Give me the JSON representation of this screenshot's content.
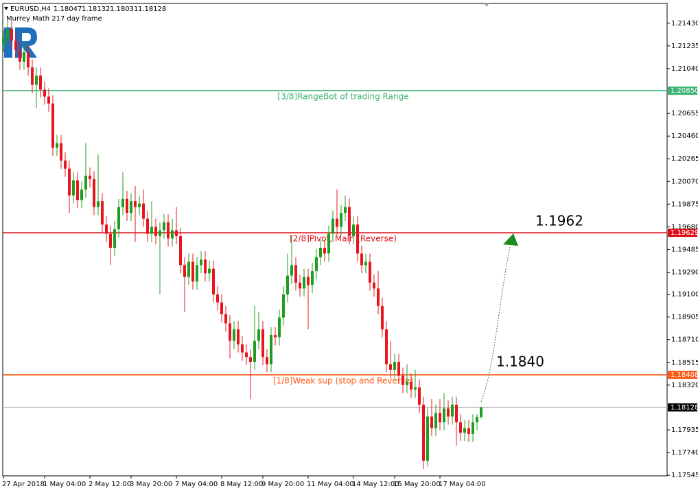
{
  "chart_data": {
    "type": "candlestick",
    "symbol": "EURUSD,H4",
    "subtitle": "Murrey Math 217 day frame",
    "up_color": "#1e9e1e",
    "down_color": "#e8141e",
    "ylim": [
      1.1754,
      1.216
    ],
    "yticks": [
      {
        "value": 1.2143,
        "label": "1.21430"
      },
      1.21235,
      {
        "value": 1.2104,
        "label": "1.21040"
      },
      1.20655,
      {
        "value": 1.2046,
        "label": "1.20460"
      },
      1.20265,
      {
        "value": 1.2007,
        "label": "1.20070"
      },
      1.19875,
      {
        "value": 1.1968,
        "label": "1.19680"
      },
      1.19485,
      {
        "value": 1.1929,
        "label": "1.19290"
      },
      {
        "value": 1.191,
        "label": "1.19100"
      },
      1.18905,
      {
        "value": 1.1871,
        "label": "1.18710"
      },
      1.18515,
      {
        "value": 1.1832,
        "label": "1.18320"
      },
      1.17935,
      {
        "value": 1.1774,
        "label": "1.17740"
      },
      1.17545
    ],
    "xticks": [
      {
        "value": 0,
        "label": "27 Apr 2018"
      },
      {
        "value": 10,
        "label": "1 May 04:00"
      },
      {
        "value": 21,
        "label": "2 May 12:00"
      },
      {
        "value": 31,
        "label": "3 May 20:00"
      },
      {
        "value": 42,
        "label": "7 May 04:00"
      },
      {
        "value": 53,
        "label": "8 May 12:00"
      },
      {
        "value": 63,
        "label": "9 May 20:00"
      },
      {
        "value": 74,
        "label": "11 May 04:00"
      },
      {
        "value": 85,
        "label": "14 May 12:00"
      },
      {
        "value": 95,
        "label": "15 May 20:00"
      },
      {
        "value": 106,
        "label": "17 May 04:00"
      }
    ],
    "levels": [
      {
        "value": 1.2085,
        "label": "1.20850",
        "text": "[3/8]RangeBot of trading Range",
        "color": "#3cb371"
      },
      {
        "value": 1.19629,
        "text": "[2/8]Pivot, Main (Reverse)",
        "color": "#e0101a"
      },
      {
        "value": 1.18408,
        "text": "[1/8]Weak sup (stop and Reverse)",
        "color": "#ff5a14"
      }
    ],
    "annotations": [
      "1.1962",
      "1.1840"
    ],
    "candles": [
      [
        1.2125,
        1.2137,
        1.2118,
        1.213
      ],
      [
        1.213,
        1.2145,
        1.2123,
        1.2138
      ],
      [
        1.2138,
        1.2145,
        1.2121,
        1.2128
      ],
      [
        1.2128,
        1.2135,
        1.2113,
        1.212
      ],
      [
        1.212,
        1.2127,
        1.2103,
        1.211
      ],
      [
        1.211,
        1.2125,
        1.2103,
        1.2118
      ],
      [
        1.2118,
        1.2125,
        1.2098,
        1.2105
      ],
      [
        1.2105,
        1.2112,
        1.2083,
        1.209
      ],
      [
        1.209,
        1.2105,
        1.207,
        1.2098
      ],
      [
        1.2098,
        1.2105,
        1.2079,
        1.2086
      ],
      [
        1.2086,
        1.2093,
        1.2073,
        1.208
      ],
      [
        1.208,
        1.2087,
        1.2067,
        1.2074
      ],
      [
        1.2074,
        1.2081,
        1.2029,
        1.2036
      ],
      [
        1.2036,
        1.2047,
        1.2029,
        1.204
      ],
      [
        1.204,
        1.2047,
        1.2018,
        1.2025
      ],
      [
        1.2025,
        1.2032,
        1.2011,
        1.2018
      ],
      [
        1.2018,
        1.2025,
        1.198,
        1.1995
      ],
      [
        1.1995,
        1.2015,
        1.1988,
        1.2008
      ],
      [
        1.2008,
        1.2015,
        1.1984,
        1.1991
      ],
      [
        1.1991,
        1.2007,
        1.1984,
        1.2
      ],
      [
        1.2,
        1.204,
        1.1993,
        1.2012
      ],
      [
        1.2012,
        1.2019,
        1.2002,
        1.2009
      ],
      [
        1.2009,
        1.2016,
        1.1978,
        1.1985
      ],
      [
        1.1985,
        1.203,
        1.1978,
        1.199
      ],
      [
        1.199,
        1.1997,
        1.1963,
        1.197
      ],
      [
        1.197,
        1.1977,
        1.1955,
        1.1962
      ],
      [
        1.1962,
        1.1969,
        1.1935,
        1.195
      ],
      [
        1.195,
        1.1973,
        1.1943,
        1.1966
      ],
      [
        1.1966,
        1.1992,
        1.1959,
        1.1985
      ],
      [
        1.1985,
        1.2015,
        1.1978,
        1.1992
      ],
      [
        1.1992,
        1.1999,
        1.1973,
        1.198
      ],
      [
        1.198,
        1.1997,
        1.1973,
        1.199
      ],
      [
        1.199,
        1.2003,
        1.1955,
        1.1985
      ],
      [
        1.1985,
        1.1995,
        1.1978,
        1.1988
      ],
      [
        1.1988,
        1.2,
        1.1968,
        1.1975
      ],
      [
        1.1975,
        1.1982,
        1.1955,
        1.1962
      ],
      [
        1.1962,
        1.199,
        1.1955,
        1.1968
      ],
      [
        1.1968,
        1.1975,
        1.1953,
        1.196
      ],
      [
        1.196,
        1.1972,
        1.191,
        1.1965
      ],
      [
        1.1965,
        1.1979,
        1.1958,
        1.1972
      ],
      [
        1.1972,
        1.1979,
        1.1951,
        1.1958
      ],
      [
        1.1958,
        1.1975,
        1.1951,
        1.1965
      ],
      [
        1.1965,
        1.1985,
        1.1953,
        1.196
      ],
      [
        1.196,
        1.1967,
        1.1928,
        1.1935
      ],
      [
        1.1935,
        1.1942,
        1.1895,
        1.1925
      ],
      [
        1.1925,
        1.1945,
        1.1918,
        1.1938
      ],
      [
        1.1938,
        1.1945,
        1.1914,
        1.1921
      ],
      [
        1.1921,
        1.1942,
        1.1914,
        1.1935
      ],
      [
        1.1935,
        1.1947,
        1.1928,
        1.194
      ],
      [
        1.194,
        1.1947,
        1.1921,
        1.1928
      ],
      [
        1.1928,
        1.1939,
        1.1921,
        1.1932
      ],
      [
        1.1932,
        1.1939,
        1.1903,
        1.191
      ],
      [
        1.191,
        1.1917,
        1.1896,
        1.1903
      ],
      [
        1.1903,
        1.191,
        1.1886,
        1.1893
      ],
      [
        1.1893,
        1.19,
        1.1878,
        1.1885
      ],
      [
        1.1885,
        1.1892,
        1.1855,
        1.187
      ],
      [
        1.187,
        1.1887,
        1.1863,
        1.188
      ],
      [
        1.188,
        1.1887,
        1.186,
        1.1867
      ],
      [
        1.1867,
        1.1874,
        1.1853,
        1.186
      ],
      [
        1.186,
        1.1867,
        1.1849,
        1.1856
      ],
      [
        1.1856,
        1.1863,
        1.182,
        1.1852
      ],
      [
        1.1852,
        1.19,
        1.1845,
        1.187
      ],
      [
        1.187,
        1.1895,
        1.1863,
        1.188
      ],
      [
        1.188,
        1.1887,
        1.1849,
        1.1856
      ],
      [
        1.1856,
        1.1863,
        1.1843,
        1.185
      ],
      [
        1.185,
        1.1882,
        1.1843,
        1.1875
      ],
      [
        1.1875,
        1.1882,
        1.1866,
        1.1873
      ],
      [
        1.1873,
        1.1897,
        1.1866,
        1.189
      ],
      [
        1.189,
        1.1917,
        1.1883,
        1.191
      ],
      [
        1.191,
        1.1945,
        1.1903,
        1.1926
      ],
      [
        1.1926,
        1.196,
        1.1919,
        1.1935
      ],
      [
        1.1935,
        1.1942,
        1.1913,
        1.192
      ],
      [
        1.192,
        1.1927,
        1.1908,
        1.1915
      ],
      [
        1.1915,
        1.1932,
        1.1908,
        1.1925
      ],
      [
        1.1925,
        1.1932,
        1.188,
        1.1918
      ],
      [
        1.1918,
        1.1937,
        1.1911,
        1.193
      ],
      [
        1.193,
        1.1949,
        1.1923,
        1.1942
      ],
      [
        1.1942,
        1.1957,
        1.1935,
        1.195
      ],
      [
        1.195,
        1.1957,
        1.1938,
        1.1945
      ],
      [
        1.1945,
        1.1969,
        1.1938,
        1.1962
      ],
      [
        1.1962,
        1.1982,
        1.1955,
        1.1975
      ],
      [
        1.1975,
        1.2,
        1.1961,
        1.1968
      ],
      [
        1.1968,
        1.1987,
        1.1961,
        1.198
      ],
      [
        1.198,
        1.1995,
        1.1973,
        1.1985
      ],
      [
        1.1985,
        1.1992,
        1.1953,
        1.196
      ],
      [
        1.196,
        1.1977,
        1.1953,
        1.197
      ],
      [
        1.197,
        1.1977,
        1.1938,
        1.1945
      ],
      [
        1.1945,
        1.1952,
        1.1928,
        1.1935
      ],
      [
        1.1935,
        1.1945,
        1.1928,
        1.1938
      ],
      [
        1.1938,
        1.1945,
        1.1913,
        1.192
      ],
      [
        1.192,
        1.1927,
        1.1908,
        1.1915
      ],
      [
        1.1915,
        1.193,
        1.1893,
        1.19
      ],
      [
        1.19,
        1.1907,
        1.1873,
        1.188
      ],
      [
        1.188,
        1.1887,
        1.1843,
        1.185
      ],
      [
        1.185,
        1.187,
        1.1838,
        1.1845
      ],
      [
        1.1845,
        1.1859,
        1.1838,
        1.1852
      ],
      [
        1.1852,
        1.1859,
        1.1833,
        1.184
      ],
      [
        1.184,
        1.1847,
        1.1825,
        1.1832
      ],
      [
        1.1832,
        1.185,
        1.1825,
        1.1835
      ],
      [
        1.1835,
        1.1842,
        1.1821,
        1.1828
      ],
      [
        1.1828,
        1.1845,
        1.1821,
        1.183
      ],
      [
        1.183,
        1.1837,
        1.1808,
        1.1815
      ],
      [
        1.1815,
        1.1822,
        1.176,
        1.1767
      ],
      [
        1.1767,
        1.1812,
        1.1762,
        1.1805
      ],
      [
        1.1805,
        1.182,
        1.1788,
        1.1795
      ],
      [
        1.1795,
        1.1815,
        1.1788,
        1.1808
      ],
      [
        1.1808,
        1.182,
        1.1793,
        1.18
      ],
      [
        1.18,
        1.1825,
        1.1793,
        1.1812
      ],
      [
        1.1812,
        1.1819,
        1.1798,
        1.1805
      ],
      [
        1.1805,
        1.1822,
        1.1798,
        1.1815
      ],
      [
        1.1815,
        1.1822,
        1.178,
        1.18
      ],
      [
        1.18,
        1.1807,
        1.1784,
        1.1791
      ],
      [
        1.1791,
        1.1802,
        1.1784,
        1.1795
      ],
      [
        1.1795,
        1.1802,
        1.1783,
        1.179
      ],
      [
        1.179,
        1.1807,
        1.1783,
        1.18
      ],
      [
        1.18,
        1.1807,
        1.1793,
        1.18047
      ],
      [
        1.18047,
        1.18132,
        1.18031,
        1.18128
      ]
    ]
  }
}
